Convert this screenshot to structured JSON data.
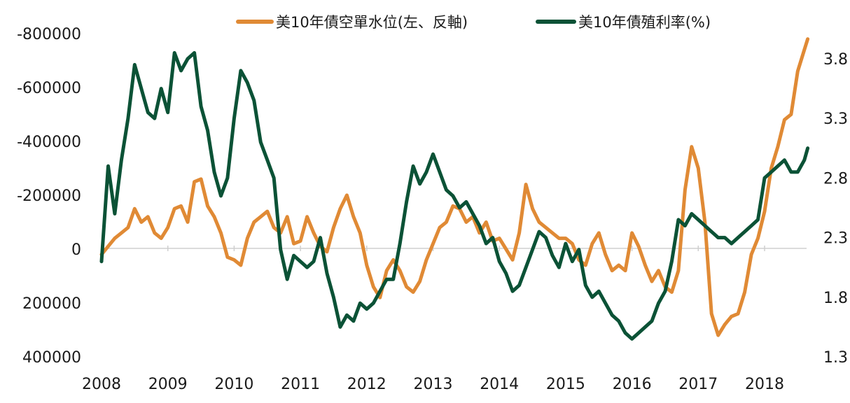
{
  "chart_data": {
    "type": "line",
    "title": "",
    "legend_position": "top-center",
    "grid": false,
    "x_axis": {
      "ticks": [
        "2008",
        "2009",
        "2010",
        "2011",
        "2012",
        "2013",
        "2014",
        "2015",
        "2016",
        "2017",
        "2018"
      ],
      "range": [
        2008.0,
        2018.65
      ]
    },
    "y_left": {
      "ticks": [
        "-800000",
        "-600000",
        "-400000",
        "-200000",
        "0",
        "200000",
        "400000"
      ],
      "tick_values": [
        -800000,
        -600000,
        -400000,
        -200000,
        0,
        200000,
        400000
      ],
      "range": [
        -800000,
        400000
      ],
      "inverted": true
    },
    "y_right": {
      "ticks": [
        "3.8",
        "3.3",
        "2.8",
        "2.3",
        "1.8",
        "1.3"
      ],
      "tick_values": [
        3.8,
        3.3,
        2.8,
        2.3,
        1.8,
        1.3
      ],
      "range": [
        1.3,
        4.1
      ]
    },
    "series": [
      {
        "name": "美10年債空單水位(左、反軸)",
        "axis": "left",
        "color": "#E08A35",
        "x": [
          2008.0,
          2008.1,
          2008.2,
          2008.3,
          2008.4,
          2008.5,
          2008.6,
          2008.7,
          2008.8,
          2008.9,
          2009.0,
          2009.1,
          2009.2,
          2009.3,
          2009.4,
          2009.5,
          2009.6,
          2009.7,
          2009.8,
          2009.9,
          2010.0,
          2010.1,
          2010.2,
          2010.3,
          2010.4,
          2010.5,
          2010.6,
          2010.7,
          2010.8,
          2010.9,
          2011.0,
          2011.1,
          2011.2,
          2011.3,
          2011.4,
          2011.5,
          2011.6,
          2011.7,
          2011.8,
          2011.9,
          2012.0,
          2012.1,
          2012.2,
          2012.3,
          2012.4,
          2012.5,
          2012.6,
          2012.7,
          2012.8,
          2012.9,
          2013.0,
          2013.1,
          2013.2,
          2013.3,
          2013.4,
          2013.5,
          2013.6,
          2013.7,
          2013.8,
          2013.9,
          2014.0,
          2014.1,
          2014.2,
          2014.3,
          2014.4,
          2014.5,
          2014.6,
          2014.7,
          2014.8,
          2014.9,
          2015.0,
          2015.1,
          2015.2,
          2015.3,
          2015.4,
          2015.5,
          2015.6,
          2015.7,
          2015.8,
          2015.9,
          2016.0,
          2016.1,
          2016.2,
          2016.3,
          2016.4,
          2016.5,
          2016.6,
          2016.7,
          2016.8,
          2016.9,
          2017.0,
          2017.1,
          2017.2,
          2017.3,
          2017.4,
          2017.5,
          2017.6,
          2017.7,
          2017.8,
          2017.9,
          2018.0,
          2018.1,
          2018.2,
          2018.3,
          2018.4,
          2018.5,
          2018.6,
          2018.65
        ],
        "values": [
          20000,
          -10000,
          -40000,
          -60000,
          -80000,
          -150000,
          -100000,
          -120000,
          -60000,
          -40000,
          -80000,
          -150000,
          -160000,
          -100000,
          -250000,
          -260000,
          -160000,
          -120000,
          -60000,
          30000,
          40000,
          60000,
          -40000,
          -100000,
          -120000,
          -140000,
          -80000,
          -60000,
          -120000,
          -20000,
          -30000,
          -120000,
          -60000,
          -10000,
          10000,
          -80000,
          -150000,
          -200000,
          -120000,
          -60000,
          60000,
          140000,
          180000,
          80000,
          40000,
          80000,
          140000,
          160000,
          120000,
          40000,
          -20000,
          -80000,
          -100000,
          -160000,
          -150000,
          -100000,
          -120000,
          -60000,
          -100000,
          -30000,
          -40000,
          0,
          40000,
          -60000,
          -240000,
          -150000,
          -100000,
          -80000,
          -60000,
          -40000,
          -40000,
          -20000,
          40000,
          60000,
          -20000,
          -60000,
          20000,
          80000,
          60000,
          80000,
          -60000,
          -10000,
          60000,
          120000,
          80000,
          140000,
          160000,
          80000,
          -220000,
          -380000,
          -300000,
          -100000,
          240000,
          320000,
          280000,
          250000,
          240000,
          160000,
          20000,
          -40000,
          -140000,
          -300000,
          -380000,
          -480000,
          -500000,
          -660000,
          -740000,
          -780000
        ]
      },
      {
        "name": "美10年債殖利率(%)",
        "axis": "right",
        "color": "#0B5236",
        "x": [
          2008.0,
          2008.1,
          2008.2,
          2008.3,
          2008.4,
          2008.5,
          2008.6,
          2008.7,
          2008.8,
          2008.9,
          2009.0,
          2009.1,
          2009.2,
          2009.3,
          2009.4,
          2009.5,
          2009.6,
          2009.7,
          2009.8,
          2009.9,
          2010.0,
          2010.1,
          2010.2,
          2010.3,
          2010.4,
          2010.5,
          2010.6,
          2010.7,
          2010.8,
          2010.9,
          2011.0,
          2011.1,
          2011.2,
          2011.3,
          2011.4,
          2011.5,
          2011.6,
          2011.7,
          2011.8,
          2011.9,
          2012.0,
          2012.1,
          2012.2,
          2012.3,
          2012.4,
          2012.5,
          2012.6,
          2012.7,
          2012.8,
          2012.9,
          2013.0,
          2013.1,
          2013.2,
          2013.3,
          2013.4,
          2013.5,
          2013.6,
          2013.7,
          2013.8,
          2013.9,
          2014.0,
          2014.1,
          2014.2,
          2014.3,
          2014.4,
          2014.5,
          2014.6,
          2014.7,
          2014.8,
          2014.9,
          2015.0,
          2015.1,
          2015.2,
          2015.3,
          2015.4,
          2015.5,
          2015.6,
          2015.7,
          2015.8,
          2015.9,
          2016.0,
          2016.1,
          2016.2,
          2016.3,
          2016.4,
          2016.5,
          2016.6,
          2016.7,
          2016.8,
          2016.9,
          2017.0,
          2017.1,
          2017.2,
          2017.3,
          2017.4,
          2017.5,
          2017.6,
          2017.7,
          2017.8,
          2017.9,
          2018.0,
          2018.1,
          2018.2,
          2018.3,
          2018.4,
          2018.5,
          2018.6,
          2018.65
        ],
        "values": [
          2.1,
          2.9,
          2.5,
          2.95,
          3.3,
          3.75,
          3.55,
          3.35,
          3.3,
          3.55,
          3.35,
          3.85,
          3.7,
          3.8,
          3.85,
          3.4,
          3.2,
          2.85,
          2.65,
          2.8,
          3.3,
          3.7,
          3.6,
          3.45,
          3.1,
          2.95,
          2.8,
          2.2,
          1.95,
          2.15,
          2.1,
          2.05,
          2.1,
          2.3,
          2.0,
          1.8,
          1.55,
          1.65,
          1.6,
          1.75,
          1.7,
          1.75,
          1.85,
          1.95,
          1.95,
          2.25,
          2.6,
          2.9,
          2.75,
          2.85,
          3.0,
          2.85,
          2.7,
          2.65,
          2.55,
          2.6,
          2.5,
          2.4,
          2.25,
          2.3,
          2.1,
          2.0,
          1.85,
          1.9,
          2.05,
          2.2,
          2.35,
          2.3,
          2.15,
          2.05,
          2.25,
          2.1,
          2.2,
          1.9,
          1.8,
          1.85,
          1.75,
          1.65,
          1.6,
          1.5,
          1.45,
          1.5,
          1.55,
          1.6,
          1.75,
          1.85,
          2.1,
          2.45,
          2.4,
          2.5,
          2.45,
          2.4,
          2.35,
          2.3,
          2.3,
          2.25,
          2.3,
          2.35,
          2.4,
          2.45,
          2.8,
          2.85,
          2.9,
          2.95,
          2.85,
          2.85,
          2.95,
          3.05
        ]
      }
    ]
  }
}
